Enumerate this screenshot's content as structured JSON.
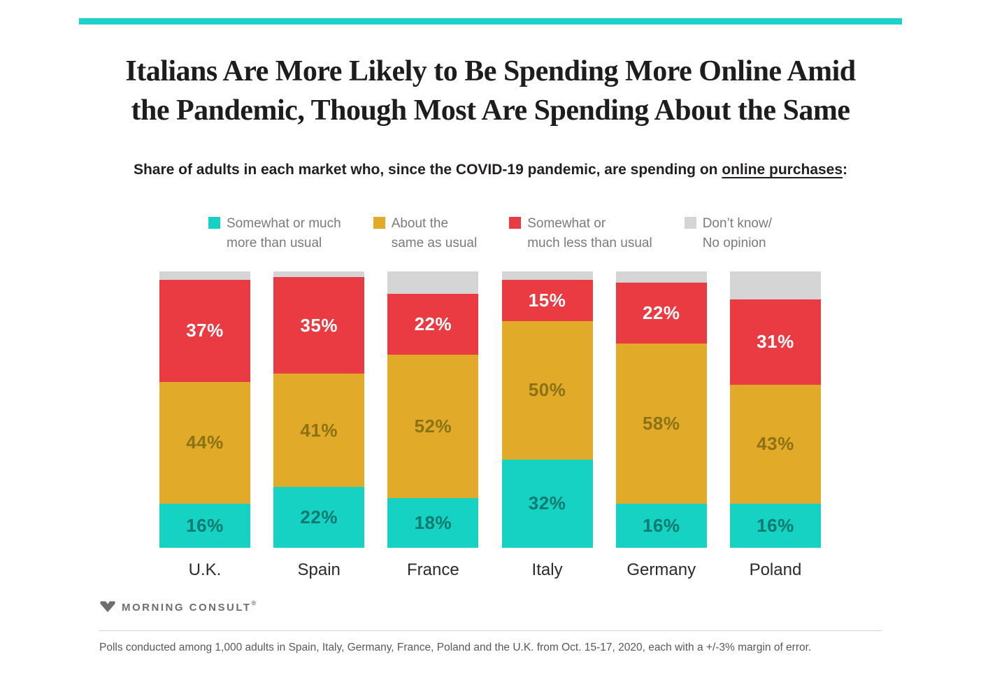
{
  "page": {
    "background": "#ffffff",
    "accent_color": "#1dd3c9"
  },
  "header": {
    "title_line1": "Italians Are More Likely to Be Spending More Online Amid",
    "title_line2": "the Pandemic, Though Most Are Spending About the Same",
    "subtitle_prefix": "Share of adults in each market who, since the COVID-19 pandemic, are spending on ",
    "subtitle_underlined": "online purchases",
    "subtitle_suffix": ":"
  },
  "legend": [
    {
      "line1": "Somewhat or much",
      "line2": "more than usual",
      "color": "#16d2c2"
    },
    {
      "line1": "About the",
      "line2": "same as usual",
      "color": "#e1aa28"
    },
    {
      "line1": "Somewhat or",
      "line2": "much less than usual",
      "color": "#ea3a42"
    },
    {
      "line1": "Don’t know/",
      "line2": "No opinion",
      "color": "#d5d5d5"
    }
  ],
  "chart_data": {
    "type": "bar",
    "stacked": true,
    "orientation": "vertical",
    "stack_order": "bottom-to-top",
    "bar_value_labels": "inside-center",
    "value_suffix": "%",
    "ylim": [
      0,
      100
    ],
    "categories": [
      "U.K.",
      "Spain",
      "France",
      "Italy",
      "Germany",
      "Poland"
    ],
    "series": [
      {
        "name": "Somewhat or much more than usual",
        "color": "#16d2c2",
        "label_color": "#0c7a70",
        "show_labels": true,
        "values": [
          16,
          22,
          18,
          32,
          16,
          16
        ]
      },
      {
        "name": "About the same as usual",
        "color": "#e1aa28",
        "label_color": "#8a7215",
        "show_labels": true,
        "values": [
          44,
          41,
          52,
          50,
          58,
          43
        ]
      },
      {
        "name": "Somewhat or much less than usual",
        "color": "#ea3a42",
        "label_color": "#ffffff",
        "show_labels": true,
        "values": [
          37,
          35,
          22,
          15,
          22,
          31
        ]
      },
      {
        "name": "Don’t know/ No opinion",
        "color": "#d5d5d5",
        "label_color": "#9a9a9a",
        "show_labels": false,
        "values": [
          3,
          2,
          8,
          3,
          4,
          10
        ]
      }
    ]
  },
  "branding": {
    "logo_text": "MORNING CONSULT",
    "registered_mark": "®"
  },
  "footer": {
    "note": "Polls conducted among 1,000 adults in Spain, Italy, Germany, France, Poland and the U.K. from Oct. 15-17, 2020, each with a +/-3% margin of error."
  }
}
